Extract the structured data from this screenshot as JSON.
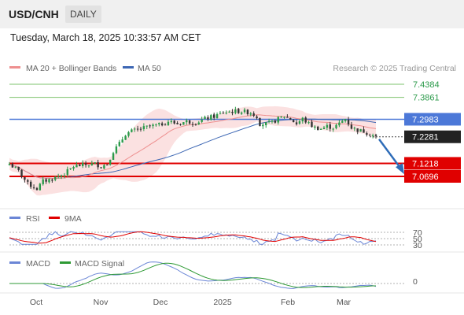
{
  "header": {
    "symbol": "USD/CNH",
    "period": "DAILY",
    "datetime": "Tuesday, March 18, 2025 10:33:57 AM CET"
  },
  "legend": {
    "ma20_bb": "MA 20 + Bollinger Bands",
    "ma50": "MA 50",
    "credit": "Research © 2025 Trading Central"
  },
  "colors": {
    "ma20": "#ee8f8f",
    "band_fill": "#fbe1e1",
    "ma50": "#3d67b4",
    "up": "#2b9a4a",
    "down": "#333333",
    "resistance": "#7ec36d",
    "pivot": "#4c78d8",
    "support": "#e00000",
    "rsi": "#6b86d6",
    "rsi_ma": "#e00000",
    "macd": "#6b86d6",
    "macd_signal": "#2e9a34",
    "arrow": "#2e6cb8"
  },
  "price_levels": [
    {
      "label": "7.4384",
      "value": 7.4384,
      "kind": "resistance"
    },
    {
      "label": "7.3861",
      "value": 7.3861,
      "kind": "resistance"
    },
    {
      "label": "7.2983",
      "value": 7.2983,
      "kind": "pivot"
    },
    {
      "label": "7.2281",
      "value": 7.2281,
      "kind": "last"
    },
    {
      "label": "7.1218",
      "value": 7.1218,
      "kind": "support"
    },
    {
      "label": "7.0696",
      "value": 7.0696,
      "kind": "support"
    }
  ],
  "x_axis": {
    "labels": [
      "Oct",
      "Nov",
      "Dec",
      "2025",
      "Feb",
      "Mar"
    ]
  },
  "rsi_panel": {
    "legend": [
      "RSI",
      "9MA"
    ],
    "levels": [
      "70",
      "50",
      "30"
    ]
  },
  "macd_panel": {
    "legend": [
      "MACD",
      "MACD Signal"
    ],
    "zero_label": "0"
  },
  "chart_data": {
    "type": "candlestick",
    "series_note": "",
    "y_range": [
      6.98,
      7.47
    ],
    "anchors": [
      [
        0,
        7.12
      ],
      [
        3,
        7.09
      ],
      [
        6,
        7.04
      ],
      [
        9,
        7.02
      ],
      [
        11,
        7.05
      ],
      [
        14,
        7.06
      ],
      [
        18,
        7.08
      ],
      [
        21,
        7.11
      ],
      [
        24,
        7.115
      ],
      [
        28,
        7.12
      ],
      [
        30,
        7.11
      ],
      [
        32,
        7.12
      ],
      [
        34,
        7.17
      ],
      [
        36,
        7.2
      ],
      [
        38,
        7.24
      ],
      [
        40,
        7.25
      ],
      [
        43,
        7.26
      ],
      [
        46,
        7.27
      ],
      [
        49,
        7.275
      ],
      [
        52,
        7.29
      ],
      [
        55,
        7.28
      ],
      [
        58,
        7.29
      ],
      [
        61,
        7.285
      ],
      [
        64,
        7.3
      ],
      [
        67,
        7.31
      ],
      [
        70,
        7.325
      ],
      [
        73,
        7.33
      ],
      [
        76,
        7.33
      ],
      [
        79,
        7.325
      ],
      [
        81,
        7.31
      ],
      [
        82,
        7.28
      ],
      [
        84,
        7.28
      ],
      [
        86,
        7.285
      ],
      [
        88,
        7.3
      ],
      [
        90,
        7.31
      ],
      [
        92,
        7.3
      ],
      [
        94,
        7.28
      ],
      [
        96,
        7.3
      ],
      [
        98,
        7.28
      ],
      [
        100,
        7.265
      ],
      [
        102,
        7.26
      ],
      [
        104,
        7.27
      ],
      [
        106,
        7.265
      ],
      [
        108,
        7.28
      ],
      [
        110,
        7.3
      ],
      [
        112,
        7.265
      ],
      [
        114,
        7.255
      ],
      [
        116,
        7.25
      ],
      [
        118,
        7.24
      ],
      [
        120,
        7.2281
      ]
    ],
    "forecast": {
      "from": 7.2281,
      "to": 7.11
    }
  }
}
